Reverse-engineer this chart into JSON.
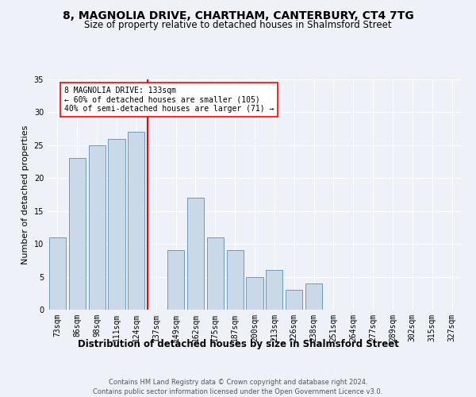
{
  "title": "8, MAGNOLIA DRIVE, CHARTHAM, CANTERBURY, CT4 7TG",
  "subtitle": "Size of property relative to detached houses in Shalmsford Street",
  "xlabel": "Distribution of detached houses by size in Shalmsford Street",
  "ylabel": "Number of detached properties",
  "categories": [
    "73sqm",
    "86sqm",
    "98sqm",
    "111sqm",
    "124sqm",
    "137sqm",
    "149sqm",
    "162sqm",
    "175sqm",
    "187sqm",
    "200sqm",
    "213sqm",
    "226sqm",
    "238sqm",
    "251sqm",
    "264sqm",
    "277sqm",
    "289sqm",
    "302sqm",
    "315sqm",
    "327sqm"
  ],
  "values": [
    11,
    23,
    25,
    26,
    27,
    0,
    9,
    17,
    11,
    9,
    5,
    6,
    3,
    4,
    0,
    0,
    0,
    0,
    0,
    0,
    0
  ],
  "bar_color": "#c9d9e8",
  "bar_edge_color": "#5b8db8",
  "highlight_line_index": 5,
  "highlight_color": "red",
  "annotation_text": "8 MAGNOLIA DRIVE: 133sqm\n← 60% of detached houses are smaller (105)\n40% of semi-detached houses are larger (71) →",
  "annotation_box_color": "white",
  "annotation_box_edge": "red",
  "ylim": [
    0,
    35
  ],
  "yticks": [
    0,
    5,
    10,
    15,
    20,
    25,
    30,
    35
  ],
  "footer1": "Contains HM Land Registry data © Crown copyright and database right 2024.",
  "footer2": "Contains public sector information licensed under the Open Government Licence v3.0.",
  "bg_color": "#eef2f8",
  "grid_color": "#ffffff",
  "title_fontsize": 10,
  "subtitle_fontsize": 8.5,
  "ylabel_fontsize": 8,
  "xlabel_fontsize": 8.5,
  "tick_fontsize": 7,
  "annotation_fontsize": 7,
  "footer_fontsize": 6
}
